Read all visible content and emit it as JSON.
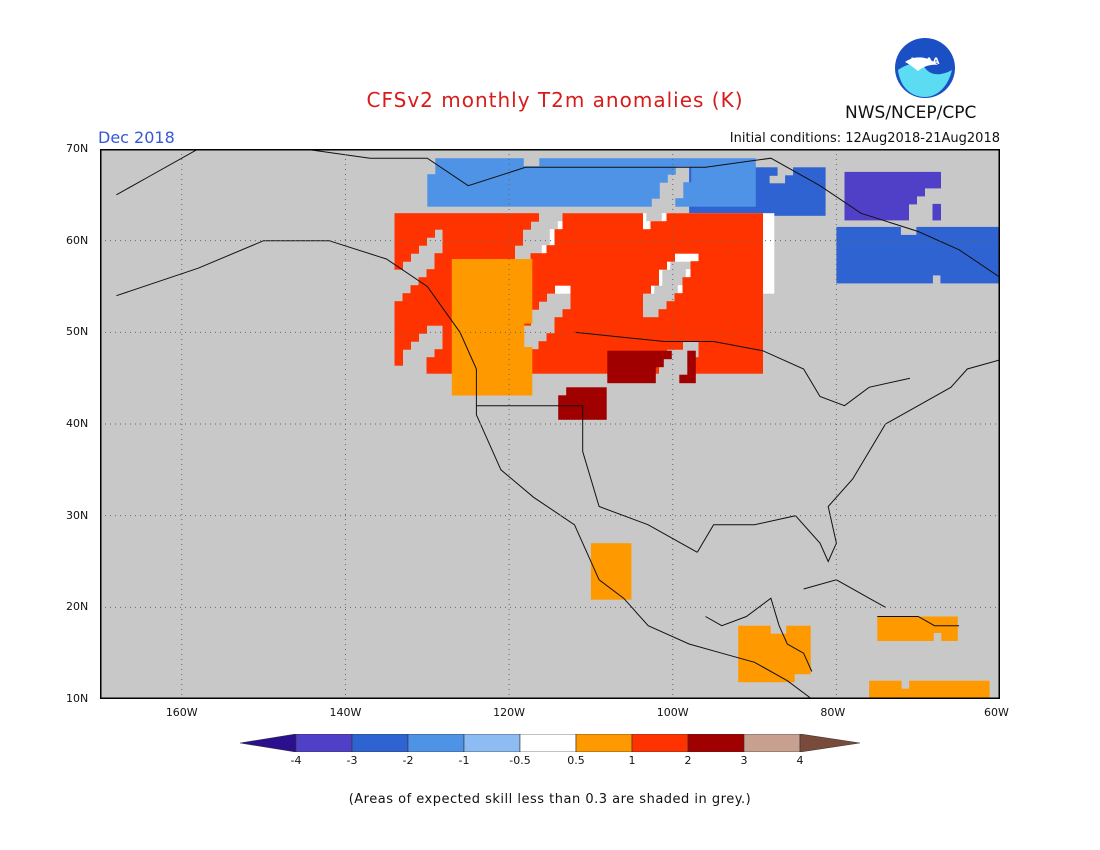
{
  "header": {
    "title": "CFSv2 monthly T2m anomalies (K)",
    "month": "Dec 2018",
    "initial_conditions": "Initial conditions: 12Aug2018-21Aug2018",
    "agency": "NWS/NCEP/CPC",
    "logo_text": "NOAA"
  },
  "axes": {
    "lat_labels": [
      "70N",
      "60N",
      "50N",
      "40N",
      "30N",
      "20N",
      "10N"
    ],
    "lon_labels": [
      "160W",
      "140W",
      "120W",
      "100W",
      "80W",
      "60W"
    ],
    "lat_range": [
      10,
      70
    ],
    "lon_range": [
      -170,
      -60
    ]
  },
  "legend": {
    "labels": [
      "-4",
      "-3",
      "-2",
      "-1",
      "-0.5",
      "0.5",
      "1",
      "2",
      "3",
      "4"
    ],
    "colors": [
      "#2a0f8f",
      "#5040c8",
      "#2f63d2",
      "#4f93e6",
      "#8cbcf2",
      "#ffffff",
      "#ff9900",
      "#ff3300",
      "#a00000",
      "#c8a090",
      "#7a4a3a"
    ]
  },
  "footnote": "(Areas of expected skill less than 0.3 are shaded in grey.)",
  "map_colors": {
    "background": "#c8c8c8",
    "grid": "#666666",
    "coast": "#111111"
  },
  "anomaly_regions": [
    {
      "name": "northeast-canada-deep-cold",
      "level": "-3",
      "lat": [
        63,
        67.5
      ],
      "lon": [
        -79,
        -68
      ]
    },
    {
      "name": "labrador-cold",
      "level": "-2",
      "lat": [
        56,
        61.5
      ],
      "lon": [
        -80,
        -60
      ]
    },
    {
      "name": "nunavut-cold",
      "level": "-2",
      "lat": [
        63,
        68
      ],
      "lon": [
        -98,
        -82
      ]
    },
    {
      "name": "arctic-blue",
      "level": "-1",
      "lat": [
        64,
        69
      ],
      "lon": [
        -130,
        -90
      ]
    },
    {
      "name": "canada-white",
      "level": "-0.5",
      "lat": [
        55,
        63
      ],
      "lon": [
        -116,
        -88
      ]
    },
    {
      "name": "west-canada-warm",
      "level": "1",
      "lat": [
        46,
        63
      ],
      "lon": [
        -134,
        -90
      ]
    },
    {
      "name": "pacific-nw-orange",
      "level": "0.5",
      "lat": [
        44,
        58
      ],
      "lon": [
        -127,
        -118
      ]
    },
    {
      "name": "northern-plains-very-warm",
      "level": "2",
      "lat": [
        45,
        48
      ],
      "lon": [
        -108,
        -98
      ]
    },
    {
      "name": "idaho-very-warm",
      "level": "2",
      "lat": [
        41,
        44
      ],
      "lon": [
        -114,
        -109
      ]
    },
    {
      "name": "mexico-orange",
      "level": "0.5",
      "lat": [
        21,
        27
      ],
      "lon": [
        -110,
        -106
      ]
    },
    {
      "name": "central-america-orange",
      "level": "0.5",
      "lat": [
        12,
        18
      ],
      "lon": [
        -92,
        -84
      ]
    },
    {
      "name": "caribbean-orange",
      "level": "0.5",
      "lat": [
        17,
        19
      ],
      "lon": [
        -75,
        -66
      ]
    },
    {
      "name": "south-caribbean-orange",
      "level": "0.5",
      "lat": [
        10,
        12
      ],
      "lon": [
        -76,
        -62
      ]
    }
  ]
}
